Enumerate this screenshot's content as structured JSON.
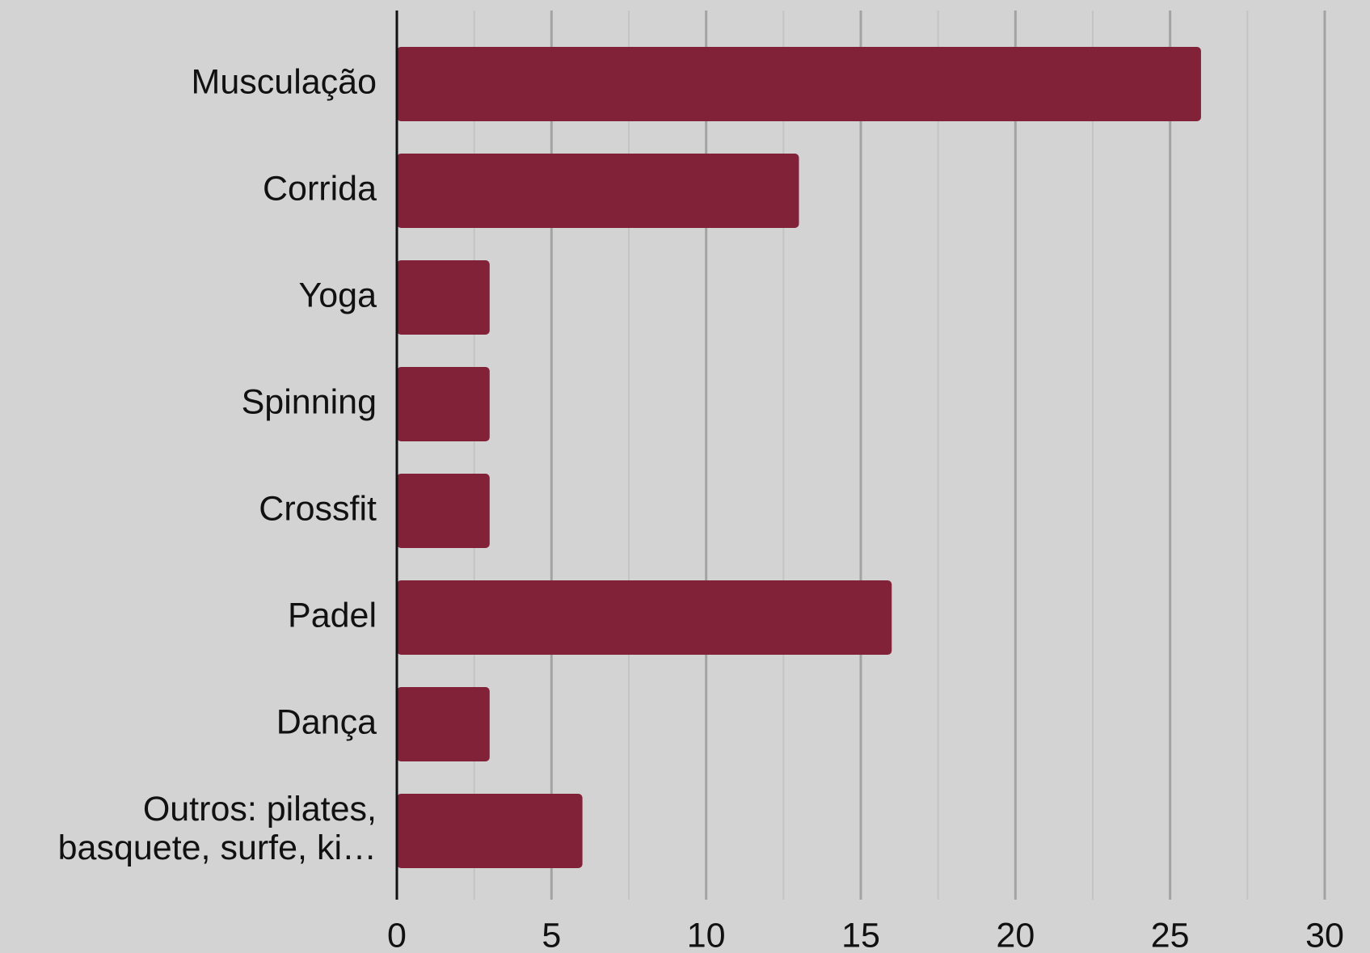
{
  "chart_data": {
    "type": "hbar",
    "categories": [
      "Musculação",
      "Corrida",
      "Yoga",
      "Spinning",
      "Crossfit",
      "Padel",
      "Dança",
      "Outros: pilates,\nbasquete, surfe, ki…"
    ],
    "values": [
      26,
      13,
      3,
      3,
      3,
      16,
      3,
      6
    ],
    "color": "#822238",
    "xlim": [
      0,
      30
    ],
    "xticks": [
      0,
      5,
      10,
      15,
      20,
      25,
      30
    ],
    "grid": true
  }
}
